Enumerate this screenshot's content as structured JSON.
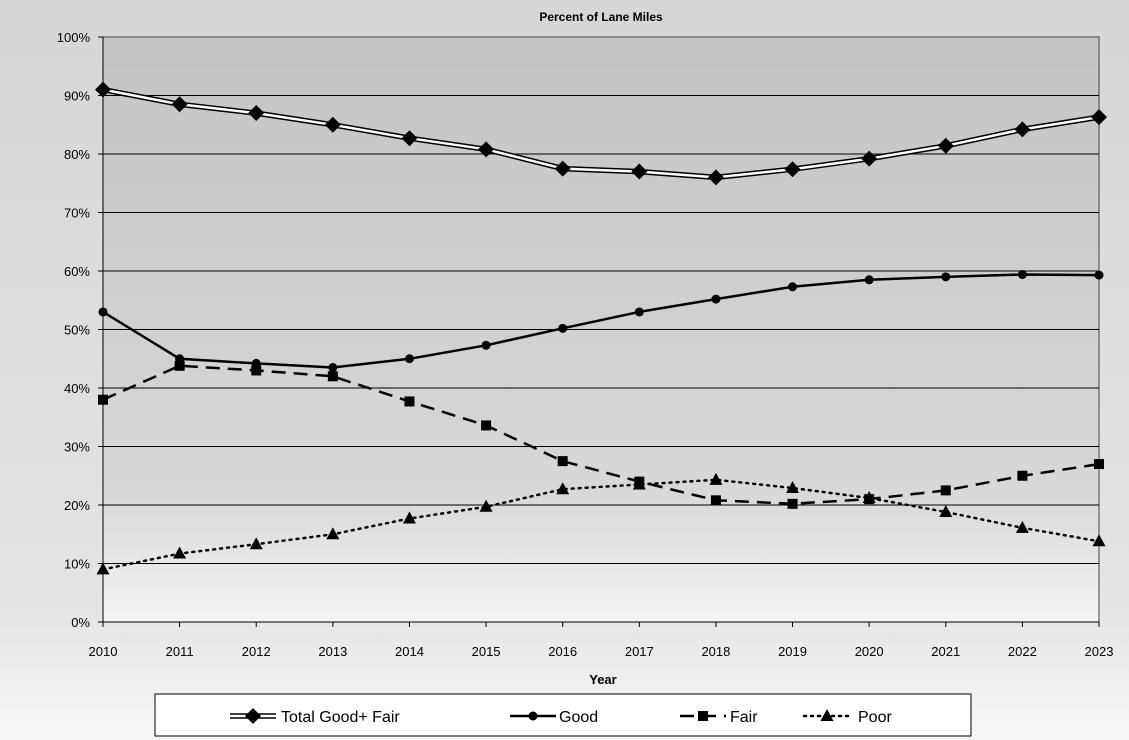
{
  "chart_data": {
    "type": "line",
    "title": "Percent of Lane Miles",
    "xlabel": "Year",
    "ylabel": "",
    "ylim": [
      0,
      100
    ],
    "y_ticks": [
      "0%",
      "10%",
      "20%",
      "30%",
      "40%",
      "50%",
      "60%",
      "70%",
      "80%",
      "90%",
      "100%"
    ],
    "y_tick_values": [
      0,
      10,
      20,
      30,
      40,
      50,
      60,
      70,
      80,
      90,
      100
    ],
    "x": [
      "2010",
      "2011",
      "2012",
      "2013",
      "2014",
      "2015",
      "2016",
      "2017",
      "2018",
      "2019",
      "2020",
      "2021",
      "2022",
      "2023"
    ],
    "grid": true,
    "legend_position": "bottom",
    "series": [
      {
        "name": "Total Good+ Fair",
        "marker": "diamond",
        "line_style": "double",
        "values": [
          91,
          88.5,
          87,
          85,
          82.7,
          80.8,
          77.5,
          77,
          76,
          77.4,
          79.2,
          81.4,
          84.2,
          86.3
        ]
      },
      {
        "name": "Good",
        "marker": "circle",
        "line_style": "solid",
        "values": [
          53,
          45,
          44.2,
          43.5,
          45,
          47.3,
          50.2,
          53,
          55.2,
          57.3,
          58.5,
          59,
          59.4,
          59.3
        ]
      },
      {
        "name": "Fair",
        "marker": "square",
        "line_style": "dashed",
        "values": [
          38,
          43.8,
          43,
          42,
          37.7,
          33.6,
          27.5,
          24,
          20.8,
          20.2,
          21,
          22.5,
          25,
          27
        ]
      },
      {
        "name": "Poor",
        "marker": "triangle",
        "line_style": "dotted",
        "values": [
          9,
          11.7,
          13.3,
          15,
          17.7,
          19.7,
          22.7,
          23.5,
          24.3,
          22.9,
          21.2,
          18.8,
          16.1,
          13.8
        ]
      }
    ]
  }
}
